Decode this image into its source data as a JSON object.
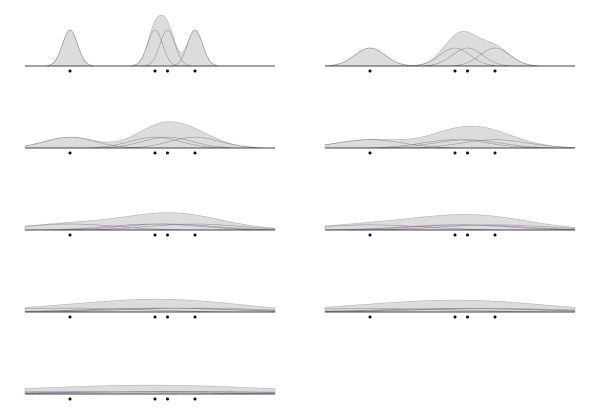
{
  "chart_data": {
    "type": "area",
    "description_kind": "small-multiples kernel density estimates with increasing bandwidth",
    "x_range": [
      0,
      10
    ],
    "samples": [
      1.8,
      5.2,
      5.7,
      6.8
    ],
    "panels": [
      {
        "bandwidth": 0.3
      },
      {
        "bandwidth": 0.6
      },
      {
        "bandwidth": 1.0
      },
      {
        "bandwidth": 1.3
      },
      {
        "bandwidth": 1.8
      },
      {
        "bandwidth": 2.1
      },
      {
        "bandwidth": 2.8
      },
      {
        "bandwidth": 3.1
      },
      {
        "bandwidth": 4.5
      }
    ],
    "grid": false,
    "legend": "none",
    "colors": {
      "fill": "#dddcdc",
      "fill_stroke": "#b5b3b3",
      "kernel": "#8a7a92",
      "baseline": "#444444",
      "point": "#111111"
    }
  }
}
